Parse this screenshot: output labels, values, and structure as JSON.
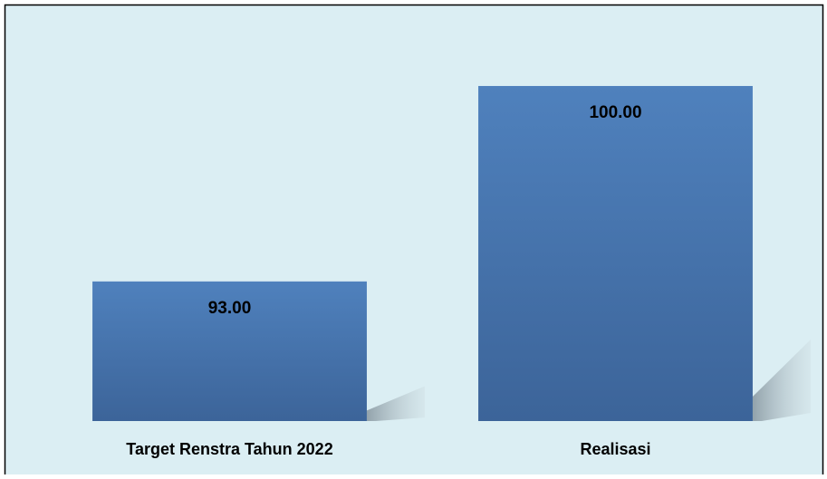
{
  "chart_data": {
    "type": "bar",
    "categories": [
      "Target Renstra Tahun 2022",
      "Realisasi"
    ],
    "values": [
      93,
      100
    ],
    "value_labels": [
      "93.00",
      "100.00"
    ],
    "color": "#4f81bd",
    "ylim": [
      88,
      102
    ]
  }
}
